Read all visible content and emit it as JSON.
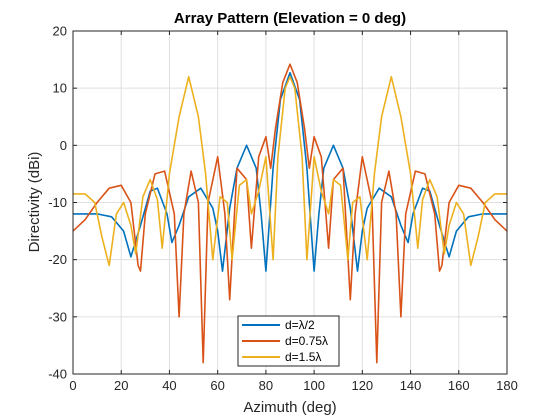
{
  "chart_data": {
    "type": "line",
    "title": "Array Pattern (Elevation = 0 deg)",
    "xlabel": "Azimuth (deg)",
    "ylabel": "Directivity (dBi)",
    "xlim": [
      0,
      180
    ],
    "ylim": [
      -40,
      20
    ],
    "xticks": [
      0,
      20,
      40,
      60,
      80,
      100,
      120,
      140,
      160,
      180
    ],
    "yticks": [
      20,
      10,
      0,
      -10,
      -20,
      -30,
      -40
    ],
    "grid": true,
    "legend_position": "bottom-center",
    "series": [
      {
        "name": "d=λ/2",
        "color": "#0072BD",
        "points": [
          [
            0,
            -12
          ],
          [
            10,
            -12
          ],
          [
            16,
            -12.5
          ],
          [
            21,
            -15
          ],
          [
            24,
            -19.5
          ],
          [
            28,
            -14
          ],
          [
            32,
            -8
          ],
          [
            35,
            -7.5
          ],
          [
            39,
            -12
          ],
          [
            41,
            -17
          ],
          [
            44,
            -14
          ],
          [
            48,
            -9
          ],
          [
            53,
            -7.5
          ],
          [
            58,
            -11
          ],
          [
            60,
            -15
          ],
          [
            62,
            -22
          ],
          [
            65,
            -11
          ],
          [
            68,
            -4
          ],
          [
            72,
            0
          ],
          [
            76,
            -4
          ],
          [
            78,
            -12
          ],
          [
            80,
            -22
          ],
          [
            83,
            -4
          ],
          [
            86,
            8
          ],
          [
            90,
            12.7
          ],
          [
            94,
            8
          ],
          [
            97,
            -4
          ],
          [
            100,
            -22
          ],
          [
            102,
            -12
          ],
          [
            104,
            -4
          ],
          [
            108,
            0
          ],
          [
            112,
            -4
          ],
          [
            115,
            -11
          ],
          [
            118,
            -22
          ],
          [
            120,
            -15
          ],
          [
            122,
            -11
          ],
          [
            127,
            -7.5
          ],
          [
            132,
            -9
          ],
          [
            136,
            -14
          ],
          [
            139,
            -17
          ],
          [
            141,
            -12
          ],
          [
            145,
            -7.5
          ],
          [
            148,
            -8
          ],
          [
            152,
            -14
          ],
          [
            156,
            -19.5
          ],
          [
            159,
            -15
          ],
          [
            164,
            -12.5
          ],
          [
            170,
            -12
          ],
          [
            180,
            -12
          ]
        ]
      },
      {
        "name": "d=0.75λ",
        "color": "#D95319",
        "points": [
          [
            0,
            -15
          ],
          [
            5,
            -13
          ],
          [
            10,
            -10
          ],
          [
            15,
            -7.5
          ],
          [
            20,
            -7
          ],
          [
            24,
            -10
          ],
          [
            27,
            -21
          ],
          [
            28,
            -22
          ],
          [
            30,
            -12
          ],
          [
            34,
            -5
          ],
          [
            38,
            -4.5
          ],
          [
            42,
            -12
          ],
          [
            44,
            -30
          ],
          [
            46,
            -12
          ],
          [
            49,
            -4.5
          ],
          [
            52,
            -10
          ],
          [
            54,
            -38
          ],
          [
            56,
            -10
          ],
          [
            60,
            -2
          ],
          [
            63,
            -12
          ],
          [
            65,
            -27
          ],
          [
            68,
            -4
          ],
          [
            72,
            -6
          ],
          [
            74,
            -18
          ],
          [
            77,
            -2
          ],
          [
            80,
            1.5
          ],
          [
            82,
            -4
          ],
          [
            84,
            3
          ],
          [
            87,
            11
          ],
          [
            90,
            14.2
          ],
          [
            93,
            11
          ],
          [
            96,
            3
          ],
          [
            98,
            -4
          ],
          [
            100,
            1.5
          ],
          [
            103,
            -2
          ],
          [
            106,
            -18
          ],
          [
            108,
            -6
          ],
          [
            112,
            -4
          ],
          [
            115,
            -27
          ],
          [
            117,
            -12
          ],
          [
            120,
            -2
          ],
          [
            124,
            -10
          ],
          [
            126,
            -38
          ],
          [
            128,
            -10
          ],
          [
            131,
            -4.5
          ],
          [
            134,
            -12
          ],
          [
            136,
            -30
          ],
          [
            138,
            -12
          ],
          [
            142,
            -4.5
          ],
          [
            146,
            -5
          ],
          [
            150,
            -12
          ],
          [
            152,
            -22
          ],
          [
            153,
            -21
          ],
          [
            156,
            -10
          ],
          [
            160,
            -7
          ],
          [
            165,
            -7.5
          ],
          [
            170,
            -10
          ],
          [
            175,
            -13
          ],
          [
            180,
            -15
          ]
        ]
      },
      {
        "name": "d=1.5λ",
        "color": "#EDB120",
        "points": [
          [
            0,
            -8.5
          ],
          [
            5,
            -8.5
          ],
          [
            9,
            -10
          ],
          [
            12,
            -16
          ],
          [
            15,
            -21
          ],
          [
            18,
            -12
          ],
          [
            21,
            -10
          ],
          [
            24,
            -14
          ],
          [
            26,
            -19
          ],
          [
            29,
            -9
          ],
          [
            32,
            -6
          ],
          [
            35,
            -9.5
          ],
          [
            37,
            -18
          ],
          [
            40,
            -5
          ],
          [
            44,
            5
          ],
          [
            48,
            12
          ],
          [
            52,
            5
          ],
          [
            55,
            -5
          ],
          [
            58,
            -20
          ],
          [
            61,
            -9
          ],
          [
            64,
            -10
          ],
          [
            66,
            -20
          ],
          [
            69,
            -7
          ],
          [
            72,
            -6
          ],
          [
            74,
            -12
          ],
          [
            77,
            -8
          ],
          [
            80,
            -2
          ],
          [
            83,
            -20
          ],
          [
            85,
            -2
          ],
          [
            88,
            10
          ],
          [
            90,
            12
          ],
          [
            92,
            10
          ],
          [
            95,
            -2
          ],
          [
            97,
            -20
          ],
          [
            100,
            -2
          ],
          [
            103,
            -8
          ],
          [
            106,
            -12
          ],
          [
            108,
            -6
          ],
          [
            111,
            -7
          ],
          [
            114,
            -20
          ],
          [
            116,
            -10
          ],
          [
            119,
            -9
          ],
          [
            122,
            -20
          ],
          [
            125,
            -5
          ],
          [
            128,
            5
          ],
          [
            132,
            12
          ],
          [
            136,
            5
          ],
          [
            140,
            -5
          ],
          [
            143,
            -18
          ],
          [
            145,
            -9.5
          ],
          [
            148,
            -6
          ],
          [
            151,
            -9
          ],
          [
            154,
            -19
          ],
          [
            156,
            -14
          ],
          [
            159,
            -10
          ],
          [
            162,
            -12
          ],
          [
            165,
            -21
          ],
          [
            168,
            -16
          ],
          [
            171,
            -10
          ],
          [
            175,
            -8.5
          ],
          [
            180,
            -8.5
          ]
        ]
      }
    ]
  }
}
